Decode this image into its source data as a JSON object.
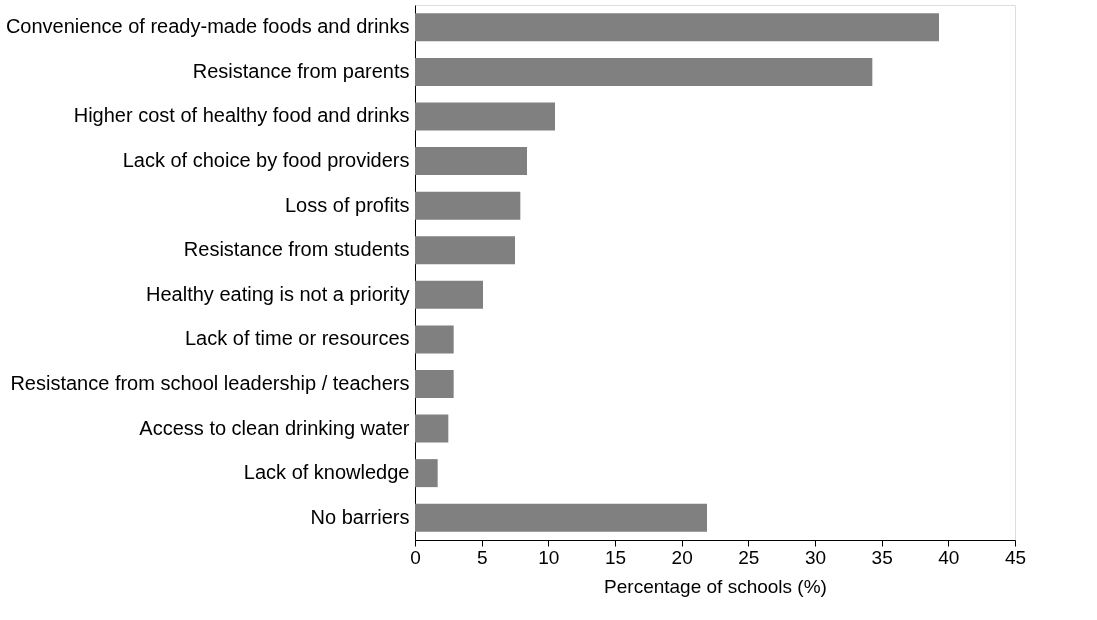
{
  "chart_data": {
    "type": "bar",
    "orientation": "horizontal",
    "xlabel": "Percentage of schools (%)",
    "categories": [
      "Convenience of ready-made foods and drinks",
      "Resistance from parents",
      "Higher cost of healthy food and drinks",
      "Lack of choice by food providers",
      "Loss of profits",
      "Resistance from students",
      "Healthy eating is not a priority",
      "Lack of time or resources",
      "Resistance from school leadership / teachers",
      "Access to clean drinking water",
      "Lack of knowledge",
      "No barriers"
    ],
    "values": [
      39.3,
      34.3,
      10.5,
      8.4,
      7.9,
      7.5,
      5.1,
      2.9,
      2.9,
      2.5,
      1.7,
      21.9
    ],
    "color": "#808080",
    "xlim": [
      0,
      45
    ],
    "xticks": [
      0,
      5,
      10,
      15,
      20,
      25,
      30,
      35,
      40,
      45
    ],
    "grid": false
  }
}
